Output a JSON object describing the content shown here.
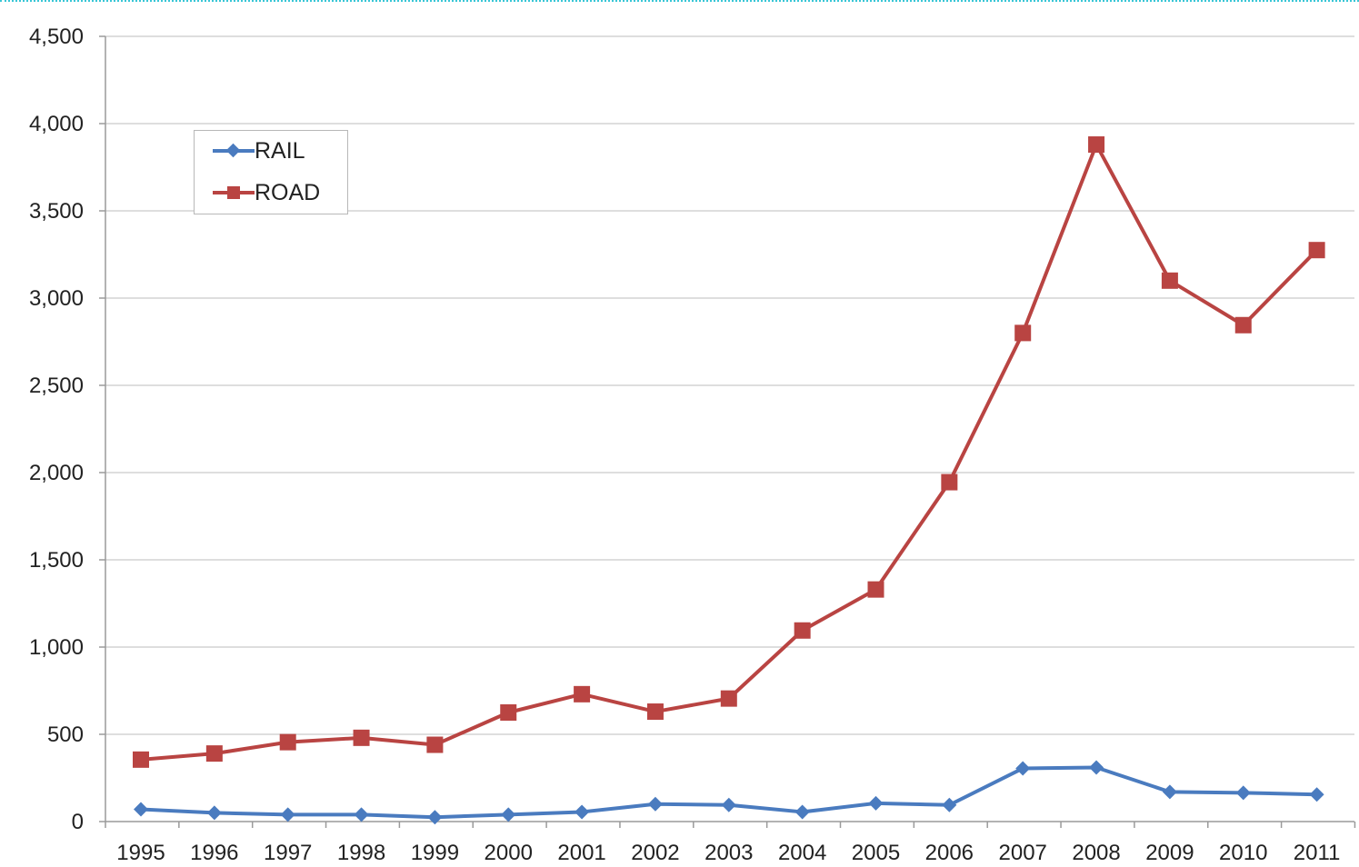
{
  "chart_data": {
    "type": "line",
    "x": [
      "1995",
      "1996",
      "1997",
      "1998",
      "1999",
      "2000",
      "2001",
      "2002",
      "2003",
      "2004",
      "2005",
      "2006",
      "2007",
      "2008",
      "2009",
      "2010",
      "2011"
    ],
    "series": [
      {
        "name": "RAIL",
        "color": "#4a7bbf",
        "marker": "diamond",
        "values": [
          70,
          50,
          40,
          40,
          25,
          40,
          55,
          100,
          95,
          55,
          105,
          95,
          305,
          310,
          170,
          165,
          155
        ]
      },
      {
        "name": "ROAD",
        "color": "#b94442",
        "marker": "square",
        "values": [
          355,
          390,
          455,
          480,
          440,
          625,
          730,
          630,
          705,
          1095,
          1330,
          1945,
          2800,
          3880,
          3100,
          2845,
          3275
        ]
      }
    ],
    "y_ticks": [
      "0",
      "500",
      "1,000",
      "1,500",
      "2,000",
      "2,500",
      "3,000",
      "3,500",
      "4,000",
      "4,500"
    ],
    "ylim": [
      0,
      4500
    ],
    "grid": "horizontal",
    "legend_position": "top-left"
  }
}
